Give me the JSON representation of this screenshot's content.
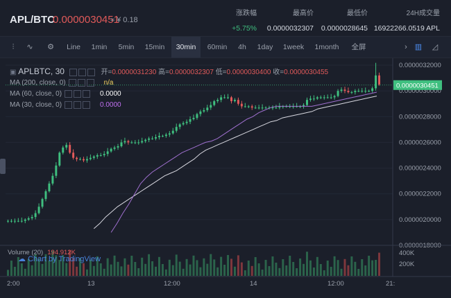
{
  "header": {
    "pair": "APL/BTC",
    "last_price": "0.0000030451",
    "approx": "≈ ¥ 0.18",
    "stats": [
      {
        "label": "涨跌幅",
        "value": "+5.75%",
        "up": true
      },
      {
        "label": "最高价",
        "value": "0.0000032307"
      },
      {
        "label": "最低价",
        "value": "0.0000028645"
      },
      {
        "label": "24H成交量",
        "value": "16922266.0519 APL"
      }
    ]
  },
  "toolbar": {
    "intervals": [
      "Line",
      "1min",
      "5min",
      "15min",
      "30min",
      "60min",
      "4h",
      "1day",
      "1week",
      "1month",
      "全屏"
    ],
    "active": "30min",
    "icons": [
      "bar-style-icon",
      "line-style-icon",
      "settings-gear-icon",
      "chevron-right-icon",
      "candle-chart-icon",
      "area-chart-icon"
    ]
  },
  "legend": {
    "symbol": "APLBTC, 30",
    "ohlc_open_label": "开=",
    "ohlc_open": "0.0000031230",
    "ohlc_high_label": "高=",
    "ohlc_high": "0.0000032307",
    "ohlc_low_label": "低=",
    "ohlc_low": "0.0000030400",
    "ohlc_close_label": "收=",
    "ohlc_close": "0.0000030455",
    "ma": [
      {
        "label": "MA (200, close, 0)",
        "value": "n/a",
        "color": "#f0d060"
      },
      {
        "label": "MA (60, close, 0)",
        "value": "0.0000",
        "color": "#ffffff"
      },
      {
        "label": "MA (30, close, 0)",
        "value": "0.0000",
        "color": "#c070f0"
      }
    ]
  },
  "volume": {
    "label": "Volume (20)",
    "value": "194.912K"
  },
  "watermark": "Chart by TradingView",
  "chart_data": {
    "type": "candlestick",
    "price_axis_ticks": [
      "0.0000032000",
      "0.0000030000",
      "0.0000028000",
      "0.0000026000",
      "0.0000024000",
      "0.0000022000",
      "0.0000020000",
      "0.0000018000"
    ],
    "price_current_label": "0.0000030451",
    "volume_axis_ticks": [
      "400K",
      "200K"
    ],
    "x_ticks": [
      "2:00",
      "13",
      "12:00",
      "14",
      "12:00",
      "21:"
    ],
    "ylim": [
      1.8e-06,
      3.2e-06
    ],
    "closes": [
      1.99,
      1.99,
      1.99,
      1.99,
      1.99,
      2.0,
      2.01,
      2.02,
      2.05,
      2.1,
      2.16,
      2.22,
      2.28,
      2.34,
      2.42,
      2.52,
      2.56,
      2.58,
      2.52,
      2.48,
      2.47,
      2.47,
      2.46,
      2.47,
      2.48,
      2.49,
      2.5,
      2.5,
      2.51,
      2.53,
      2.55,
      2.56,
      2.57,
      2.6,
      2.61,
      2.6,
      2.6,
      2.6,
      2.6,
      2.61,
      2.62,
      2.63,
      2.63,
      2.64,
      2.65,
      2.65,
      2.66,
      2.67,
      2.69,
      2.72,
      2.74,
      2.75,
      2.76,
      2.78,
      2.79,
      2.82,
      2.84,
      2.85,
      2.87,
      2.89,
      2.92,
      2.93,
      2.95,
      2.95,
      2.95,
      2.92,
      2.93,
      2.9,
      2.88,
      2.88,
      2.88,
      2.87,
      2.87,
      2.87,
      2.87,
      2.87,
      2.87,
      2.87,
      2.87,
      2.88,
      2.88,
      2.88,
      2.88,
      2.88,
      2.88,
      2.88,
      2.89,
      2.93,
      2.94,
      2.94,
      2.95,
      2.95,
      2.95,
      2.95,
      2.95,
      2.96,
      3.0,
      3.01,
      3.0,
      2.99,
      2.99,
      3.0,
      3.0,
      3.0,
      3.0,
      3.0,
      3.02,
      3.12,
      3.05
    ],
    "ma60": [
      1.93,
      1.97,
      2.02,
      2.06,
      2.1,
      2.13,
      2.16,
      2.19,
      2.22,
      2.25,
      2.28,
      2.31,
      2.34,
      2.36,
      2.38,
      2.41,
      2.44,
      2.47,
      2.51,
      2.54,
      2.56,
      2.58,
      2.6,
      2.62,
      2.64,
      2.66,
      2.68,
      2.7,
      2.72,
      2.74,
      2.76,
      2.77,
      2.79,
      2.8,
      2.81,
      2.82,
      2.83,
      2.84,
      2.86,
      2.87,
      2.88,
      2.89,
      2.9,
      2.91,
      2.92,
      2.93,
      2.94,
      2.95,
      2.96
    ],
    "ma30": [
      1.9,
      1.97,
      2.05,
      2.12,
      2.2,
      2.28,
      2.33,
      2.37,
      2.4,
      2.43,
      2.46,
      2.49,
      2.52,
      2.54,
      2.56,
      2.58,
      2.6,
      2.61,
      2.63,
      2.66,
      2.69,
      2.72,
      2.75,
      2.78,
      2.8,
      2.83,
      2.85,
      2.87,
      2.88,
      2.88,
      2.88,
      2.88,
      2.88,
      2.88,
      2.88,
      2.89,
      2.9,
      2.91,
      2.92,
      2.93,
      2.94,
      2.95,
      2.96,
      2.97,
      2.98,
      2.99
    ]
  }
}
